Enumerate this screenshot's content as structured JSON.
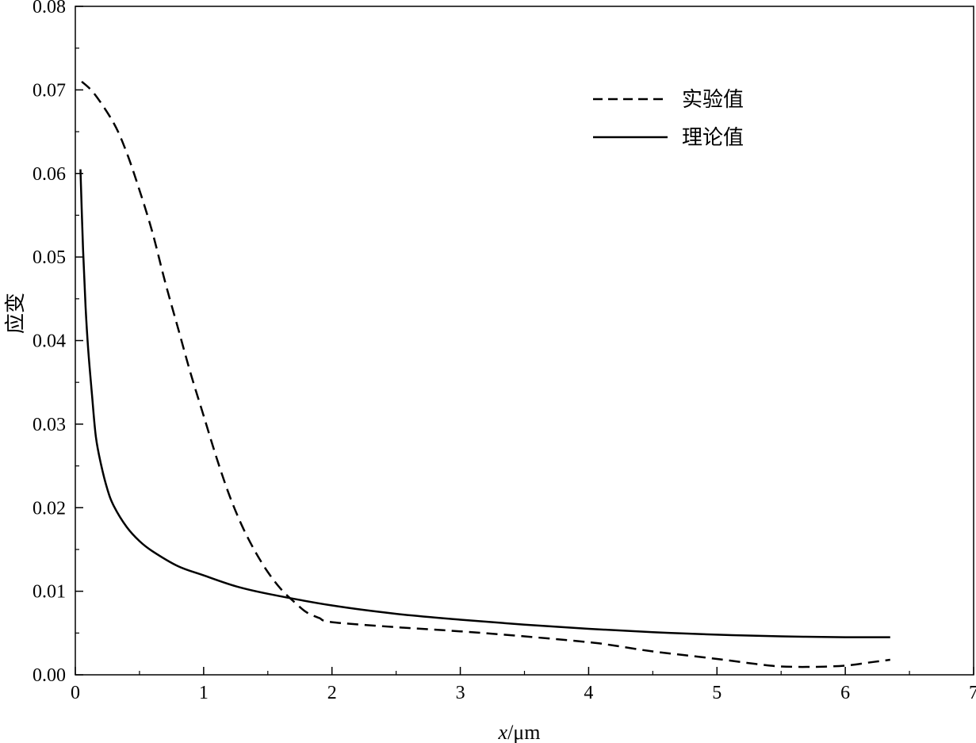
{
  "chart_data": {
    "type": "line",
    "xlabel_var": "x",
    "xlabel_unit": "/μm",
    "ylabel": "应变",
    "xlim": [
      0,
      7
    ],
    "ylim": [
      0,
      0.08
    ],
    "x_ticks": [
      "0",
      "1",
      "2",
      "3",
      "4",
      "5",
      "6",
      "7"
    ],
    "y_ticks": [
      "0.00",
      "0.01",
      "0.02",
      "0.03",
      "0.04",
      "0.05",
      "0.06",
      "0.07",
      "0.08"
    ],
    "grid": false,
    "legend_position": "top-right",
    "series": [
      {
        "name": "实验值",
        "style": "dashed",
        "color": "#000000",
        "x": [
          0.05,
          0.15,
          0.3,
          0.4,
          0.5,
          0.6,
          0.7,
          0.8,
          0.9,
          1.0,
          1.1,
          1.2,
          1.3,
          1.4,
          1.5,
          1.6,
          1.7,
          1.8,
          1.9,
          2.0,
          2.5,
          3.0,
          3.5,
          4.0,
          4.2,
          4.5,
          5.0,
          5.3,
          5.5,
          5.75,
          6.0,
          6.2,
          6.35
        ],
        "y": [
          0.071,
          0.0695,
          0.066,
          0.0625,
          0.058,
          0.053,
          0.047,
          0.0415,
          0.036,
          0.031,
          0.026,
          0.0215,
          0.0178,
          0.0148,
          0.0123,
          0.0103,
          0.0088,
          0.0075,
          0.0068,
          0.0063,
          0.0057,
          0.0052,
          0.0046,
          0.0039,
          0.0035,
          0.0028,
          0.0019,
          0.0013,
          0.001,
          0.00095,
          0.0011,
          0.0015,
          0.0018
        ]
      },
      {
        "name": "理论值",
        "style": "solid",
        "color": "#000000",
        "x": [
          0.04,
          0.06,
          0.08,
          0.1,
          0.13,
          0.16,
          0.2,
          0.25,
          0.3,
          0.4,
          0.5,
          0.6,
          0.8,
          1.0,
          1.25,
          1.5,
          2.0,
          2.5,
          3.0,
          3.5,
          4.0,
          4.5,
          5.0,
          5.5,
          6.0,
          6.35
        ],
        "y": [
          0.0605,
          0.051,
          0.044,
          0.039,
          0.0335,
          0.0285,
          0.0252,
          0.0222,
          0.0202,
          0.0177,
          0.016,
          0.0148,
          0.013,
          0.0119,
          0.0106,
          0.0097,
          0.0083,
          0.0073,
          0.0066,
          0.006,
          0.0055,
          0.0051,
          0.0048,
          0.0046,
          0.0045,
          0.0045
        ]
      }
    ]
  }
}
